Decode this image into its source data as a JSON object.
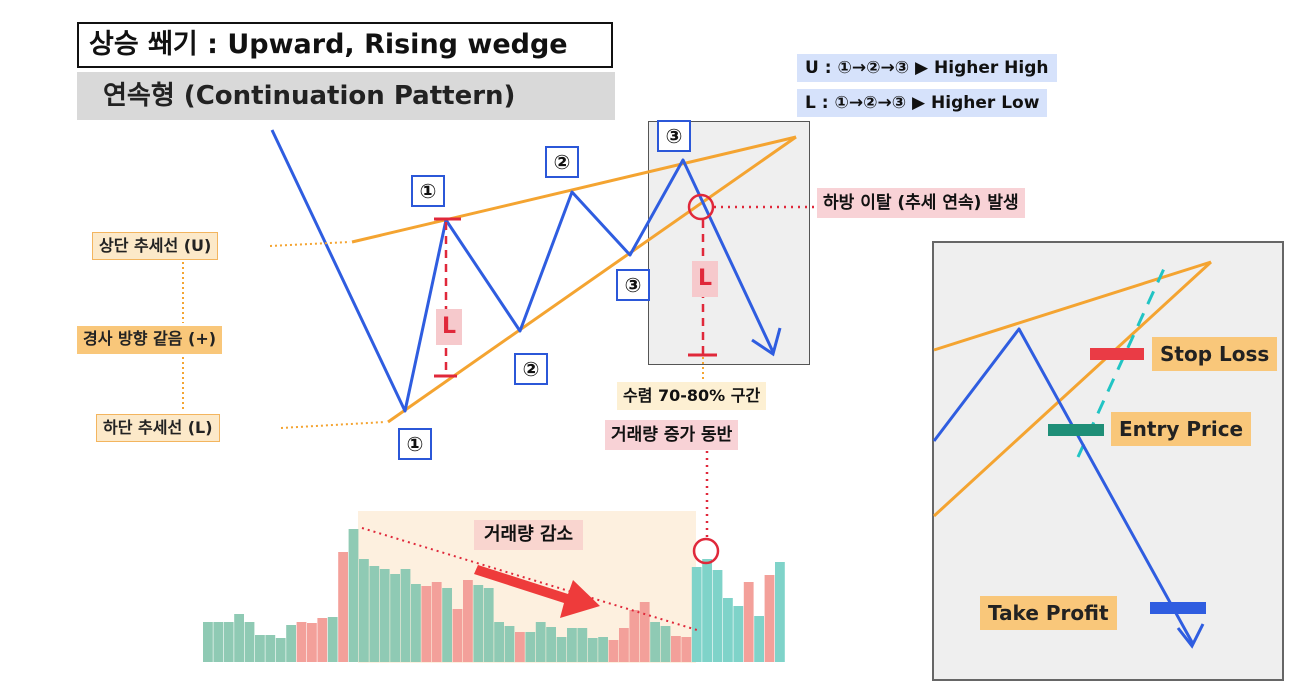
{
  "header": {
    "title": "상승 쐐기 : Upward, Rising wedge",
    "subtitle": "연속형  (Continuation Pattern)"
  },
  "legend": {
    "upper": "U : ①→②→③ ▶ Higher High",
    "lower": "L : ①→②→③ ▶  Higher Low"
  },
  "labels": {
    "upper_trendline": "상단 추세선 (U)",
    "same_slope": "경사 방향 같음 (+)",
    "lower_trendline": "하단 추세선 (L)",
    "breakout": "하방 이탈 (추세 연속) 발생",
    "convergence": "수렴 70-80% 구간",
    "volume_with": "거래량 증가 동반",
    "volume_decrease": "거래량 감소",
    "L": "L"
  },
  "markers": {
    "upper": [
      "①",
      "②",
      "③"
    ],
    "lower": [
      "①",
      "②",
      "③"
    ]
  },
  "inset": {
    "stop_loss": "Stop Loss",
    "entry_price": "Entry Price",
    "take_profit": "Take Profit"
  },
  "colors": {
    "price_line": "#2f5de0",
    "trendline": "#f4a431",
    "accent_red": "#e0283a",
    "volume_green": "#8fcab4",
    "volume_red": "#f3a09a",
    "volume_teal": "#7fd3c9",
    "stop_loss": "#ea3b45",
    "entry": "#1f8f78",
    "take_profit": "#2f5de0"
  },
  "volume_bars": {
    "values": [
      40,
      40,
      40,
      48,
      40,
      27,
      27,
      24,
      37,
      40,
      39,
      44,
      45,
      110,
      133,
      103,
      96,
      93,
      88,
      93,
      78,
      76,
      80,
      74,
      53,
      82,
      77,
      74,
      40,
      36,
      30,
      30,
      40,
      35,
      25,
      34,
      34,
      24,
      25,
      22,
      34,
      52,
      60,
      40,
      36,
      26,
      25,
      95,
      103,
      92,
      64,
      56,
      80,
      46,
      87,
      100
    ],
    "kinds": [
      "g",
      "g",
      "g",
      "g",
      "g",
      "g",
      "g",
      "g",
      "g",
      "r",
      "r",
      "r",
      "g",
      "r",
      "g",
      "g",
      "g",
      "g",
      "g",
      "g",
      "g",
      "r",
      "r",
      "g",
      "r",
      "r",
      "g",
      "g",
      "g",
      "g",
      "r",
      "g",
      "g",
      "g",
      "g",
      "g",
      "g",
      "g",
      "g",
      "r",
      "r",
      "r",
      "r",
      "g",
      "g",
      "r",
      "r",
      "t",
      "t",
      "t",
      "t",
      "t",
      "r",
      "t",
      "r",
      "t"
    ]
  }
}
